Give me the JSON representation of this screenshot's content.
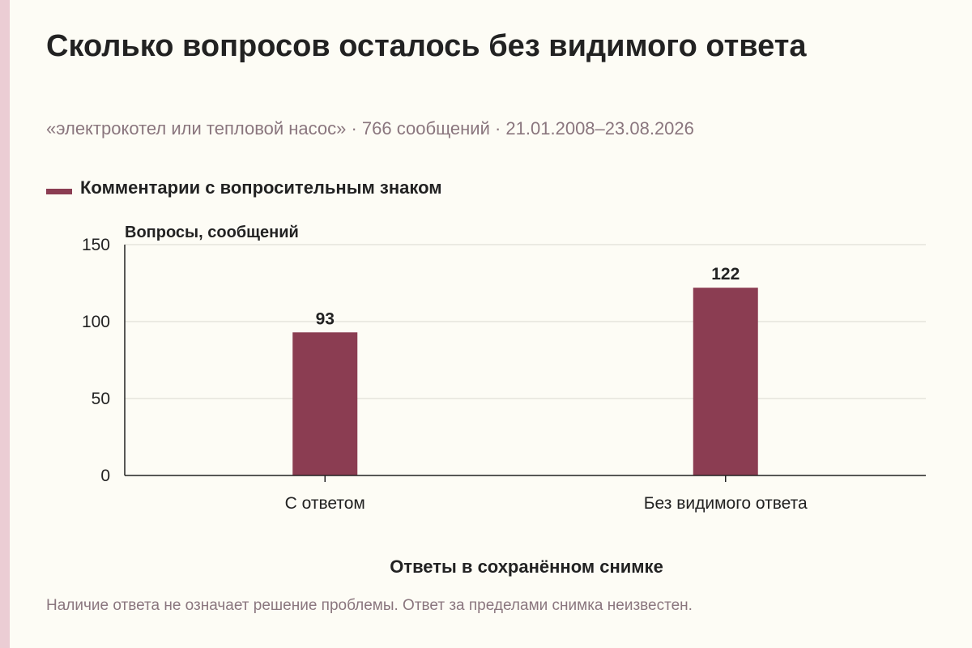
{
  "colors": {
    "bar": "#8b3d52",
    "accent_strip": "#ebcdd4",
    "background": "#fdfcf5",
    "grid": "#d9d7d0",
    "axis": "#222222",
    "muted_text": "#8a767e"
  },
  "chart_data": {
    "type": "bar",
    "title": "Сколько вопросов осталось без видимого ответа",
    "subtitle": "«электрокотел или тепловой насос» · 766 сообщений · 21.01.2008–23.08.2026",
    "legend_position": "top-left",
    "grid": true,
    "categories": [
      "С ответом",
      "Без видимого ответа"
    ],
    "series": [
      {
        "name": "Комментарии с вопросительным знаком",
        "values": [
          93,
          122
        ]
      }
    ],
    "xlabel": "Ответы в сохранённом снимке",
    "ylabel": "Вопросы, сообщений",
    "ylim": [
      0,
      150
    ],
    "yticks": [
      0,
      50,
      100,
      150
    ],
    "annotation": "Наличие ответа не означает решение проблемы. Ответ за пределами снимка неизвестен."
  }
}
